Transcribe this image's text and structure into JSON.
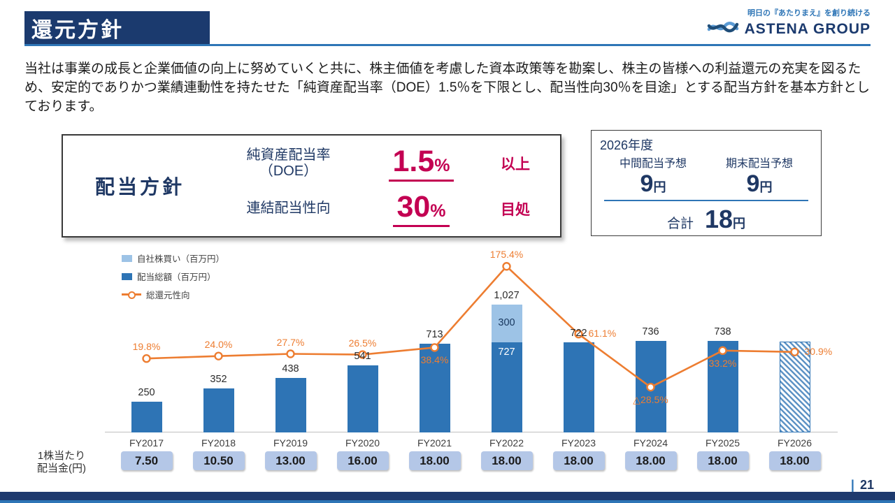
{
  "colors": {
    "navy": "#1b3a6e",
    "accent_blue": "#2e75b6",
    "bar_blue": "#2e74b5",
    "light_blue": "#9dc3e6",
    "orange": "#ed7d31",
    "crimson": "#c30052",
    "chip_blue": "#b4c7e7"
  },
  "header": {
    "title": "還元方針"
  },
  "logo": {
    "tagline": "明日の『あたりまえ』を創り続ける",
    "name": "ASTENA GROUP"
  },
  "intro": "当社は事業の成長と企業価値の向上に努めていくと共に、株主価値を考慮した資本政策等を勘案し、株主の皆様への利益還元の充実を図るため、安定的でありかつ業績連動性を持たせた「純資産配当率（DOE）1.5％を下限とし、配当性向30％を目途」とする配当方針を基本方針としております。",
  "policy_box": {
    "title": "配当方針",
    "rows": [
      {
        "label_line1": "純資産配当率",
        "label_line2": "（DOE）",
        "value": "1.5",
        "unit": "%",
        "suffix": "以上"
      },
      {
        "label_line1": "連結配当性向",
        "label_line2": "",
        "value": "30",
        "unit": "%",
        "suffix": "目処"
      }
    ]
  },
  "forecast_box": {
    "year": "2026年度",
    "columns": [
      {
        "label": "中間配当予想",
        "value": "9",
        "unit": "円"
      },
      {
        "label": "期末配当予想",
        "value": "9",
        "unit": "円"
      }
    ],
    "total_label": "合計",
    "total_value": "18",
    "total_unit": "円"
  },
  "chart_data": {
    "type": "bar",
    "categories": [
      "FY2017",
      "FY2018",
      "FY2019",
      "FY2020",
      "FY2021",
      "FY2022",
      "FY2023",
      "FY2024",
      "FY2025",
      "FY2026"
    ],
    "series": [
      {
        "name": "配当総額（百万円）",
        "type": "bar",
        "color": "#2e74b5",
        "values": [
          250,
          352,
          438,
          541,
          713,
          727,
          722,
          736,
          738,
          730
        ]
      },
      {
        "name": "自社株買い（百万円）",
        "type": "bar",
        "color": "#9dc3e6",
        "values": [
          0,
          0,
          0,
          0,
          0,
          300,
          0,
          0,
          0,
          0
        ]
      },
      {
        "name": "総還元性向",
        "type": "line",
        "color": "#ed7d31",
        "values": [
          19.8,
          24.0,
          27.7,
          26.5,
          38.4,
          175.4,
          61.1,
          -28.5,
          33.2,
          30.9
        ]
      }
    ],
    "bar_total_labels": [
      "250",
      "352",
      "438",
      "541",
      "713",
      "1,027",
      "722",
      "736",
      "738",
      ""
    ],
    "buyback_labels": [
      "",
      "",
      "",
      "",
      "",
      "300",
      "",
      "",
      "",
      ""
    ],
    "dividend_inbar_labels": [
      "",
      "",
      "",
      "",
      "",
      "727",
      "",
      "",
      "",
      ""
    ],
    "line_labels": [
      "19.8%",
      "24.0%",
      "27.7%",
      "26.5%",
      "38.4%",
      "175.4%",
      "61.1%",
      "△28.5%",
      "33.2%",
      "30.9%"
    ],
    "line_label_pos": [
      "above",
      "above",
      "above",
      "above",
      "below",
      "above",
      "right",
      "below",
      "below",
      "right"
    ],
    "hatched_index": 9,
    "legend": [
      {
        "label": "自社株買い（百万円）",
        "swatch": "light"
      },
      {
        "label": "配当総額（百万円）",
        "swatch": "dark"
      },
      {
        "label": "総還元性向",
        "swatch": "line"
      }
    ],
    "ylim": [
      0,
      1100
    ],
    "grid": false,
    "legend_position": "top-left",
    "per_share": {
      "label_line1": "1株当たり",
      "label_line2": "配当金(円)",
      "values": [
        "7.50",
        "10.50",
        "13.00",
        "16.00",
        "18.00",
        "18.00",
        "18.00",
        "18.00",
        "18.00",
        "18.00"
      ]
    }
  },
  "footer": {
    "page_sep": "|",
    "page_number": "21"
  }
}
